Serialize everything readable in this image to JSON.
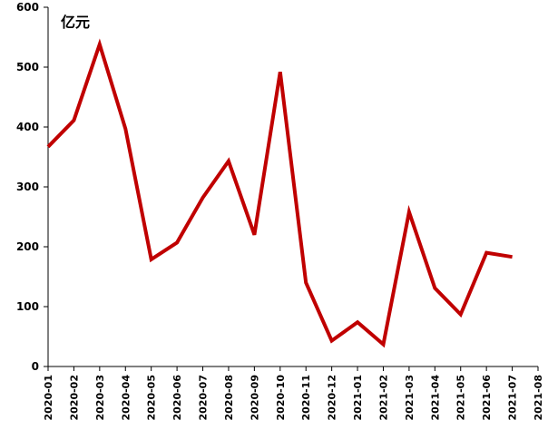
{
  "chart_data": {
    "type": "line",
    "unit_label": "亿元",
    "x": [
      "2020-01",
      "2020-02",
      "2020-03",
      "2020-04",
      "2020-05",
      "2020-06",
      "2020-07",
      "2020-08",
      "2020-09",
      "2020-10",
      "2020-11",
      "2020-12",
      "2021-01",
      "2021-02",
      "2021-03",
      "2021-04",
      "2021-05",
      "2021-06",
      "2021-07"
    ],
    "x_tick_labels": [
      "2020-01",
      "2020-02",
      "2020-03",
      "2020-04",
      "2020-05",
      "2020-06",
      "2020-07",
      "2020-08",
      "2020-09",
      "2020-10",
      "2020-11",
      "2020-12",
      "2021-01",
      "2021-02",
      "2021-03",
      "2021-04",
      "2021-05",
      "2021-06",
      "2021-07",
      "2021-08"
    ],
    "series": [
      {
        "values": [
          367,
          411,
          538,
          397,
          179,
          207,
          282,
          343,
          220,
          492,
          140,
          43,
          74,
          37,
          258,
          131,
          87,
          190,
          183
        ]
      }
    ],
    "ylim": [
      0,
      600
    ],
    "y_ticks": [
      0,
      100,
      200,
      300,
      400,
      500,
      600
    ],
    "grid": false,
    "line_color": "#C00000"
  }
}
